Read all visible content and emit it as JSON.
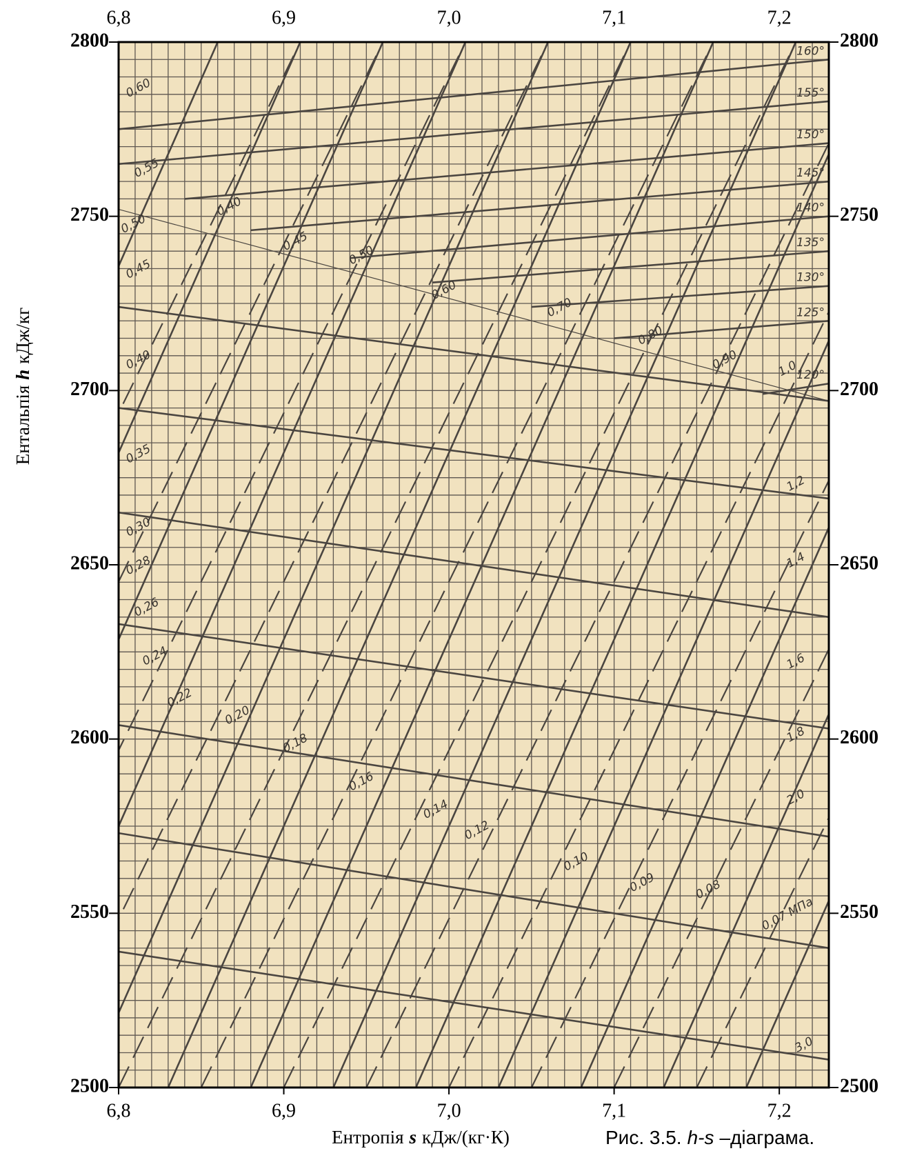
{
  "chart_data": {
    "type": "line",
    "xlabel": [
      "Ентропія",
      "s",
      "кДж/(кг·К)"
    ],
    "ylabel": [
      "Ентальпія",
      "h",
      "кДж/кг"
    ],
    "caption": [
      "Рис. 3.5.",
      "h-s",
      "–діаграма."
    ],
    "xlim": [
      6.8,
      7.23
    ],
    "ylim": [
      2500,
      2800
    ],
    "xticks": [
      {
        "value": 6.8,
        "label": "6,8"
      },
      {
        "value": 6.9,
        "label": "6,9"
      },
      {
        "value": 7.0,
        "label": "7,0"
      },
      {
        "value": 7.1,
        "label": "7,1"
      },
      {
        "value": 7.2,
        "label": "7,2"
      }
    ],
    "yticks": [
      2500,
      2550,
      2600,
      2650,
      2700,
      2750,
      2800
    ],
    "grid": true,
    "minor_grid": {
      "x_step": 0.01,
      "y_step": 5
    },
    "background": "#f1e2bf",
    "series": [
      {
        "style": "solid",
        "x": [
          6.58,
          6.86
        ],
        "values": [
          2500,
          2800
        ]
      },
      {
        "style": "solid",
        "x": [
          6.63,
          6.91
        ],
        "values": [
          2500,
          2800
        ]
      },
      {
        "style": "solid",
        "x": [
          6.68,
          6.96
        ],
        "values": [
          2500,
          2800
        ]
      },
      {
        "style": "solid",
        "x": [
          6.73,
          7.01
        ],
        "values": [
          2500,
          2800
        ]
      },
      {
        "style": "solid",
        "x": [
          6.78,
          7.06
        ],
        "values": [
          2500,
          2800
        ]
      },
      {
        "style": "solid",
        "x": [
          6.83,
          7.11
        ],
        "values": [
          2500,
          2800
        ]
      },
      {
        "style": "solid",
        "x": [
          6.88,
          7.16
        ],
        "values": [
          2500,
          2800
        ]
      },
      {
        "style": "solid",
        "x": [
          6.93,
          7.21
        ],
        "values": [
          2500,
          2800
        ]
      },
      {
        "style": "solid",
        "x": [
          6.98,
          7.26
        ],
        "values": [
          2500,
          2800
        ]
      },
      {
        "style": "solid",
        "x": [
          7.03,
          7.31
        ],
        "values": [
          2500,
          2800
        ]
      },
      {
        "style": "solid",
        "x": [
          7.08,
          7.36
        ],
        "values": [
          2500,
          2800
        ]
      },
      {
        "style": "solid",
        "x": [
          7.13,
          7.41
        ],
        "values": [
          2500,
          2800
        ]
      },
      {
        "style": "solid",
        "x": [
          7.18,
          7.46
        ],
        "values": [
          2500,
          2800
        ]
      },
      {
        "style": "dashed",
        "x": [
          6.6,
          6.91
        ],
        "values": [
          2500,
          2800
        ]
      },
      {
        "style": "dashed",
        "x": [
          6.65,
          6.96
        ],
        "values": [
          2500,
          2800
        ]
      },
      {
        "style": "dashed",
        "x": [
          6.7,
          7.01
        ],
        "values": [
          2500,
          2800
        ]
      },
      {
        "style": "dashed",
        "x": [
          6.75,
          7.06
        ],
        "values": [
          2500,
          2800
        ]
      },
      {
        "style": "dashed",
        "x": [
          6.8,
          7.11
        ],
        "values": [
          2500,
          2800
        ]
      },
      {
        "style": "dashed",
        "x": [
          6.85,
          7.16
        ],
        "values": [
          2500,
          2800
        ]
      },
      {
        "style": "dashed",
        "x": [
          6.9,
          7.21
        ],
        "values": [
          2500,
          2800
        ]
      },
      {
        "style": "dashed",
        "x": [
          6.95,
          7.26
        ],
        "values": [
          2500,
          2800
        ]
      },
      {
        "style": "dashed",
        "x": [
          7.0,
          7.31
        ],
        "values": [
          2500,
          2800
        ]
      },
      {
        "style": "dashed",
        "x": [
          7.05,
          7.36
        ],
        "values": [
          2500,
          2800
        ]
      },
      {
        "style": "dashed",
        "x": [
          7.1,
          7.41
        ],
        "values": [
          2500,
          2800
        ]
      },
      {
        "style": "dashed",
        "x": [
          7.15,
          7.46
        ],
        "values": [
          2500,
          2800
        ]
      },
      {
        "style": "solid",
        "x": [
          6.8,
          7.23
        ],
        "values": [
          2724,
          2697
        ]
      },
      {
        "style": "solid",
        "x": [
          6.8,
          7.23
        ],
        "values": [
          2695,
          2669
        ]
      },
      {
        "style": "solid",
        "x": [
          6.8,
          7.23
        ],
        "values": [
          2665,
          2635
        ]
      },
      {
        "style": "solid",
        "x": [
          6.8,
          7.23
        ],
        "values": [
          2633,
          2603
        ]
      },
      {
        "style": "solid",
        "x": [
          6.8,
          7.23
        ],
        "values": [
          2604,
          2572
        ]
      },
      {
        "style": "solid",
        "x": [
          6.8,
          7.23
        ],
        "values": [
          2573,
          2540
        ]
      },
      {
        "style": "solid",
        "x": [
          6.8,
          7.23
        ],
        "values": [
          2539,
          2508
        ]
      },
      {
        "style": "thin",
        "x": [
          6.8,
          7.23
        ],
        "values": [
          2752,
          2697
        ]
      },
      {
        "style": "solid",
        "name": "160°",
        "x": [
          6.8,
          7.23
        ],
        "values": [
          2775,
          2795
        ]
      },
      {
        "style": "solid",
        "name": "155°",
        "x": [
          6.8,
          7.23
        ],
        "values": [
          2765,
          2783
        ]
      },
      {
        "style": "solid",
        "name": "150°",
        "x": [
          6.84,
          7.23
        ],
        "values": [
          2755,
          2771
        ]
      },
      {
        "style": "solid",
        "name": "145°",
        "x": [
          6.88,
          7.23
        ],
        "values": [
          2746,
          2760
        ]
      },
      {
        "style": "solid",
        "name": "140°",
        "x": [
          6.94,
          7.23
        ],
        "values": [
          2738,
          2750
        ]
      },
      {
        "style": "solid",
        "name": "135°",
        "x": [
          6.99,
          7.23
        ],
        "values": [
          2731,
          2740
        ]
      },
      {
        "style": "solid",
        "name": "130°",
        "x": [
          7.05,
          7.23
        ],
        "values": [
          2724,
          2730
        ]
      },
      {
        "style": "solid",
        "name": "125°",
        "x": [
          7.1,
          7.23
        ],
        "values": [
          2715,
          2720
        ]
      },
      {
        "style": "solid",
        "name": "120°",
        "x": [
          7.19,
          7.23
        ],
        "values": [
          2699,
          2702
        ]
      }
    ],
    "annotations": [
      {
        "text": "0,60",
        "x": 6.805,
        "y": 2785
      },
      {
        "text": "0,55",
        "x": 6.81,
        "y": 2762
      },
      {
        "text": "0,50",
        "x": 6.802,
        "y": 2746
      },
      {
        "text": "0,45",
        "x": 6.805,
        "y": 2733
      },
      {
        "text": "0,40",
        "x": 6.805,
        "y": 2707
      },
      {
        "text": "0,35",
        "x": 6.805,
        "y": 2680
      },
      {
        "text": "0,30",
        "x": 6.805,
        "y": 2659
      },
      {
        "text": "0,28",
        "x": 6.805,
        "y": 2648
      },
      {
        "text": "0,26",
        "x": 6.81,
        "y": 2636
      },
      {
        "text": "0,24",
        "x": 6.815,
        "y": 2622
      },
      {
        "text": "0,22",
        "x": 6.83,
        "y": 2610
      },
      {
        "text": "0,20",
        "x": 6.865,
        "y": 2605
      },
      {
        "text": "0,18",
        "x": 6.9,
        "y": 2597
      },
      {
        "text": "0,16",
        "x": 6.94,
        "y": 2586
      },
      {
        "text": "0,14",
        "x": 6.985,
        "y": 2578
      },
      {
        "text": "0,12",
        "x": 7.01,
        "y": 2572
      },
      {
        "text": "0,10",
        "x": 7.07,
        "y": 2563
      },
      {
        "text": "0,09",
        "x": 7.11,
        "y": 2557
      },
      {
        "text": "0,08",
        "x": 7.15,
        "y": 2555
      },
      {
        "text": "0,07 МПа",
        "x": 7.19,
        "y": 2546
      },
      {
        "text": "0,40",
        "x": 6.86,
        "y": 2751
      },
      {
        "text": "0,45",
        "x": 6.9,
        "y": 2741
      },
      {
        "text": "0,50",
        "x": 6.94,
        "y": 2737
      },
      {
        "text": "0,60",
        "x": 6.99,
        "y": 2727
      },
      {
        "text": "0,70",
        "x": 7.06,
        "y": 2722
      },
      {
        "text": "0,80",
        "x": 7.115,
        "y": 2714
      },
      {
        "text": "0,90",
        "x": 7.16,
        "y": 2707
      },
      {
        "text": "1,0",
        "x": 7.2,
        "y": 2705
      },
      {
        "text": "1,2",
        "x": 7.205,
        "y": 2672
      },
      {
        "text": "1,4",
        "x": 7.205,
        "y": 2650
      },
      {
        "text": "1,6",
        "x": 7.205,
        "y": 2621
      },
      {
        "text": "1,8",
        "x": 7.205,
        "y": 2600
      },
      {
        "text": "2,0",
        "x": 7.205,
        "y": 2582
      },
      {
        "text": "3,0",
        "x": 7.21,
        "y": 2511
      }
    ]
  }
}
